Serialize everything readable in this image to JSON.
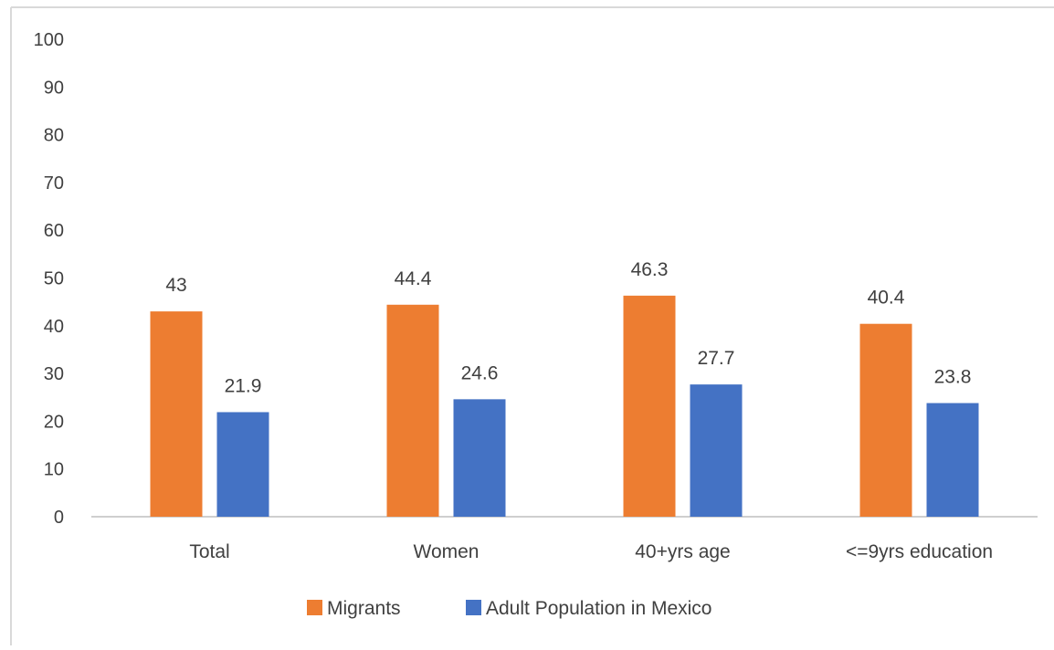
{
  "chart_data": {
    "type": "bar",
    "title": "",
    "xlabel": "",
    "ylabel": "",
    "ylim": [
      0,
      100
    ],
    "yticks": [
      0,
      10,
      20,
      30,
      40,
      50,
      60,
      70,
      80,
      90,
      100
    ],
    "categories": [
      "Total",
      "Women",
      "40+yrs age",
      "<=9yrs education"
    ],
    "series": [
      {
        "name": "Migrants",
        "color": "#ED7D31",
        "values": [
          43,
          44.4,
          46.3,
          40.4
        ],
        "labels": [
          "43",
          "44.4",
          "46.3",
          "40.4"
        ]
      },
      {
        "name": "Adult Population in Mexico",
        "color": "#4472C4",
        "values": [
          21.9,
          24.6,
          27.7,
          23.8
        ],
        "labels": [
          "21.9",
          "24.6",
          "27.7",
          "23.8"
        ]
      }
    ],
    "grid": false,
    "legend": "bottom-center"
  }
}
